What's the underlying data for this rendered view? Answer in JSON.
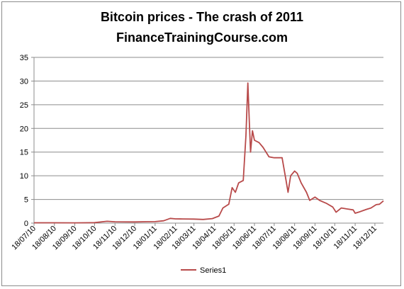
{
  "chart_data": {
    "type": "line",
    "title": "Bitcoin prices - The crash of 2011",
    "subtitle": "FinanceTrainingCourse.com",
    "xlabel": "",
    "ylabel": "",
    "x_tick_labels": [
      "18/07/10",
      "18/08/10",
      "18/09/10",
      "18/10/10",
      "18/11/10",
      "18/12/10",
      "18/01/11",
      "18/02/11",
      "18/03/11",
      "18/04/11",
      "18/05/11",
      "18/06/11",
      "18/07/11",
      "18/08/11",
      "18/09/11",
      "18/10/11",
      "18/11/11",
      "18/12/11"
    ],
    "x_range": [
      "2010-07-18",
      "2011-12-31"
    ],
    "ylim": [
      0,
      35
    ],
    "y_ticks": [
      0,
      5,
      10,
      15,
      20,
      25,
      30,
      35
    ],
    "grid": "horizontal",
    "legend": "bottom-center",
    "series": [
      {
        "name": "Series1",
        "color": "#b84a4a",
        "points": [
          [
            "2010-07-18",
            0.08
          ],
          [
            "2010-08-18",
            0.07
          ],
          [
            "2010-09-18",
            0.06
          ],
          [
            "2010-10-18",
            0.1
          ],
          [
            "2010-11-06",
            0.39
          ],
          [
            "2010-11-18",
            0.28
          ],
          [
            "2010-12-18",
            0.25
          ],
          [
            "2011-01-05",
            0.3
          ],
          [
            "2011-01-18",
            0.32
          ],
          [
            "2011-01-31",
            0.5
          ],
          [
            "2011-02-10",
            1.0
          ],
          [
            "2011-02-18",
            0.9
          ],
          [
            "2011-03-01",
            0.88
          ],
          [
            "2011-03-18",
            0.86
          ],
          [
            "2011-04-01",
            0.78
          ],
          [
            "2011-04-15",
            0.95
          ],
          [
            "2011-04-25",
            1.5
          ],
          [
            "2011-05-01",
            3.2
          ],
          [
            "2011-05-10",
            4.0
          ],
          [
            "2011-05-15",
            7.5
          ],
          [
            "2011-05-20",
            6.5
          ],
          [
            "2011-05-25",
            8.5
          ],
          [
            "2011-06-01",
            9.0
          ],
          [
            "2011-06-05",
            18.5
          ],
          [
            "2011-06-08",
            29.6
          ],
          [
            "2011-06-10",
            22.0
          ],
          [
            "2011-06-12",
            15.0
          ],
          [
            "2011-06-15",
            19.5
          ],
          [
            "2011-06-18",
            17.5
          ],
          [
            "2011-06-25",
            17.0
          ],
          [
            "2011-07-01",
            16.0
          ],
          [
            "2011-07-10",
            14.0
          ],
          [
            "2011-07-18",
            13.8
          ],
          [
            "2011-07-30",
            13.8
          ],
          [
            "2011-08-05",
            9.0
          ],
          [
            "2011-08-08",
            6.5
          ],
          [
            "2011-08-12",
            10.0
          ],
          [
            "2011-08-18",
            11.0
          ],
          [
            "2011-08-22",
            10.5
          ],
          [
            "2011-08-28",
            8.5
          ],
          [
            "2011-09-05",
            6.5
          ],
          [
            "2011-09-10",
            4.8
          ],
          [
            "2011-09-18",
            5.5
          ],
          [
            "2011-09-25",
            4.8
          ],
          [
            "2011-10-05",
            4.2
          ],
          [
            "2011-10-15",
            3.4
          ],
          [
            "2011-10-20",
            2.3
          ],
          [
            "2011-10-28",
            3.2
          ],
          [
            "2011-11-05",
            3.0
          ],
          [
            "2011-11-15",
            2.8
          ],
          [
            "2011-11-18",
            2.1
          ],
          [
            "2011-11-25",
            2.4
          ],
          [
            "2011-12-05",
            2.9
          ],
          [
            "2011-12-12",
            3.2
          ],
          [
            "2011-12-20",
            3.9
          ],
          [
            "2011-12-25",
            4.0
          ],
          [
            "2011-12-31",
            4.7
          ]
        ]
      }
    ]
  }
}
